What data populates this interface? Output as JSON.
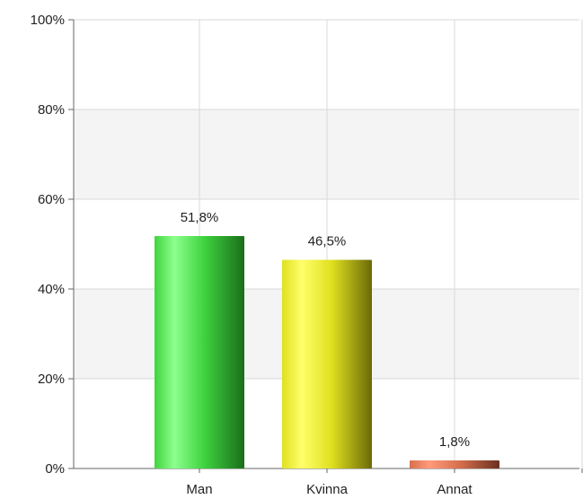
{
  "chart_data": {
    "type": "bar",
    "categories": [
      "Man",
      "Kvinna",
      "Annat"
    ],
    "values": [
      51.8,
      46.5,
      1.8
    ],
    "value_labels": [
      "51,8%",
      "46,5%",
      "1,8%"
    ],
    "title": "",
    "xlabel": "",
    "ylabel": "",
    "ylim": [
      0,
      100
    ],
    "yticks": [
      0,
      20,
      40,
      60,
      80,
      100
    ],
    "ytick_labels": [
      "0%",
      "20%",
      "40%",
      "60%",
      "80%",
      "100%"
    ],
    "grid": true,
    "bar_colors": [
      {
        "light": "#8dff8d",
        "mid": "#3fd43f",
        "dark": "#1a6e1a"
      },
      {
        "light": "#ffff6a",
        "mid": "#e0e020",
        "dark": "#6a6a08"
      },
      {
        "light": "#ff9a7a",
        "mid": "#d8704f",
        "dark": "#6a3020"
      }
    ]
  }
}
